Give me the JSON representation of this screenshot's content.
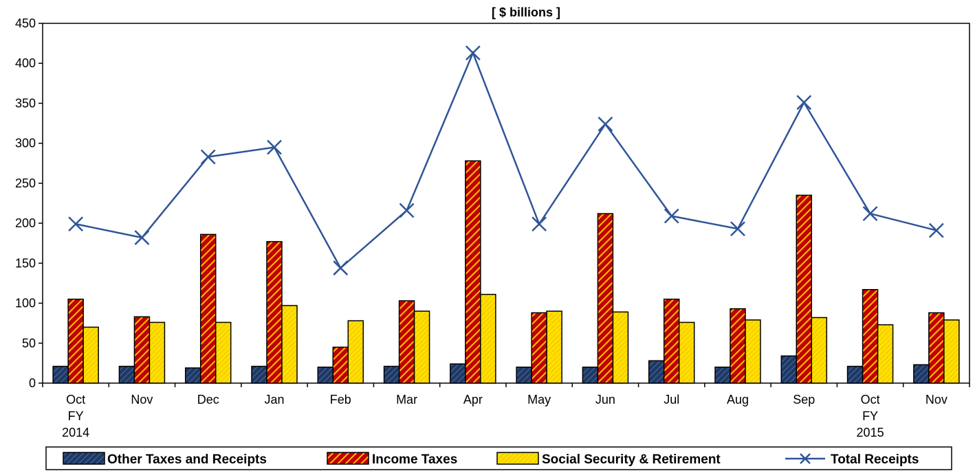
{
  "chart_data": {
    "type": "bar",
    "title": "[ $ billions  ]",
    "categories": [
      "Oct\nFY\n2014",
      "Nov",
      "Dec",
      "Jan",
      "Feb",
      "Mar",
      "Apr",
      "May",
      "Jun",
      "Jul",
      "Aug",
      "Sep",
      "Oct\nFY\n2015",
      "Nov"
    ],
    "ylim": [
      0,
      450
    ],
    "yticks": [
      "0",
      "50",
      "100",
      "150",
      "200",
      "250",
      "300",
      "350",
      "400",
      "450"
    ],
    "series": [
      {
        "name": "Other Taxes and Receipts",
        "kind": "bar",
        "color": "#1F3864",
        "pattern": "diagonal hatch",
        "values": [
          21,
          21,
          19,
          21,
          20,
          21,
          24,
          20,
          20,
          28,
          20,
          34,
          21,
          23
        ]
      },
      {
        "name": "Income Taxes",
        "kind": "bar",
        "color": "#C00000",
        "pattern": "yellow diagonal stripes",
        "values": [
          105,
          83,
          186,
          177,
          45,
          103,
          278,
          88,
          212,
          105,
          93,
          235,
          117,
          88
        ]
      },
      {
        "name": "Social Security & Retirement",
        "kind": "bar",
        "color": "#FFD700",
        "pattern": "fine diagonal hatch",
        "values": [
          70,
          76,
          76,
          97,
          78,
          90,
          111,
          90,
          89,
          76,
          79,
          82,
          73,
          79
        ]
      },
      {
        "name": "Total Receipts",
        "kind": "line",
        "color": "#2F5597",
        "marker": "x",
        "values": [
          199,
          182,
          283,
          295,
          144,
          216,
          413,
          199,
          324,
          209,
          193,
          351,
          212,
          191
        ]
      }
    ],
    "grid": false,
    "legend_position": "bottom"
  }
}
